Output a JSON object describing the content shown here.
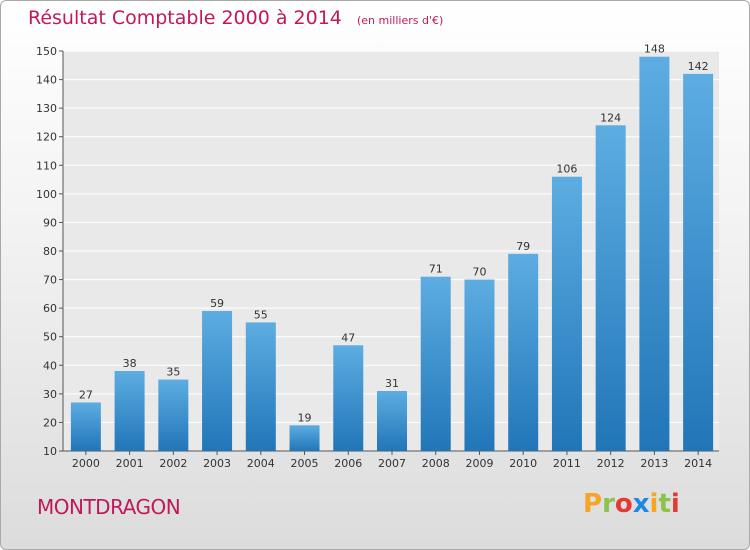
{
  "title": "Résultat Comptable 2000 à 2014",
  "unit": "(en milliers d'€)",
  "city": "MONTDRAGON",
  "logo": {
    "letters": [
      "P",
      "r",
      "o",
      "x",
      "i",
      "t",
      "i"
    ],
    "colors": [
      "#f5a623",
      "#8bc34a",
      "#e53935",
      "#1e88e5",
      "#f5a623",
      "#8bc34a",
      "#e53935"
    ]
  },
  "colors": {
    "bar_top": "#5dade2",
    "bar_bottom": "#2176b8",
    "title": "#c2185b"
  },
  "chart_data": {
    "type": "bar",
    "title": "Résultat Comptable 2000 à 2014",
    "categories": [
      "2000",
      "2001",
      "2002",
      "2003",
      "2004",
      "2005",
      "2006",
      "2007",
      "2008",
      "2009",
      "2010",
      "2011",
      "2012",
      "2013",
      "2014"
    ],
    "values": [
      27,
      38,
      35,
      59,
      55,
      19,
      47,
      31,
      71,
      70,
      79,
      106,
      124,
      148,
      142
    ],
    "value_labels": [
      "27",
      "38",
      "35",
      "59",
      "55",
      "19",
      "47",
      "31",
      "71",
      "70",
      "79",
      "106",
      "124",
      "148",
      "142"
    ],
    "ylim": [
      10,
      150
    ],
    "yticks": [
      10,
      20,
      30,
      40,
      50,
      60,
      70,
      80,
      90,
      100,
      110,
      120,
      130,
      140,
      150
    ],
    "ytick_labels": [
      "10",
      "20",
      "30",
      "40",
      "50",
      "60",
      "70",
      "80",
      "90",
      "100",
      "110",
      "120",
      "130",
      "140",
      "150"
    ],
    "grid": true,
    "xlabel": "",
    "ylabel": ""
  }
}
